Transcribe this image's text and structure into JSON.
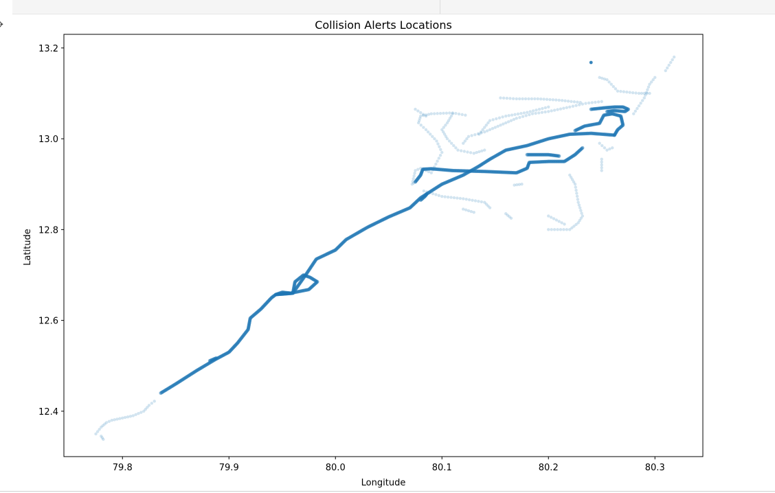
{
  "chart_data": {
    "type": "scatter",
    "title": "Collision Alerts Locations",
    "xlabel": "Longitude",
    "ylabel": "Latitude",
    "xlim": [
      79.745,
      80.345
    ],
    "ylim": [
      12.3,
      13.23
    ],
    "xticks": [
      79.8,
      79.9,
      80.0,
      80.1,
      80.2,
      80.3
    ],
    "xtick_labels": [
      "79.8",
      "79.9",
      "80.0",
      "80.1",
      "80.2",
      "80.3"
    ],
    "yticks": [
      12.4,
      12.6,
      12.8,
      13.0,
      13.2
    ],
    "ytick_labels": [
      "12.4",
      "12.6",
      "12.8",
      "13.0",
      "13.2"
    ],
    "grid": false,
    "marker_color": "#1f77b4",
    "marker_alpha": 0.2,
    "dense_tracks": [
      [
        [
          79.836,
          12.44
        ],
        [
          79.85,
          12.46
        ],
        [
          79.87,
          12.49
        ],
        [
          79.888,
          12.515
        ],
        [
          79.9,
          12.53
        ],
        [
          79.908,
          12.55
        ],
        [
          79.918,
          12.58
        ],
        [
          79.92,
          12.605
        ],
        [
          79.93,
          12.625
        ],
        [
          79.94,
          12.65
        ],
        [
          79.944,
          12.657
        ],
        [
          79.96,
          12.66
        ],
        [
          79.962,
          12.685
        ],
        [
          79.97,
          12.7
        ],
        [
          79.976,
          12.695
        ],
        [
          79.983,
          12.685
        ],
        [
          79.975,
          12.668
        ],
        [
          79.958,
          12.66
        ],
        [
          79.95,
          12.662
        ],
        [
          79.944,
          12.657
        ],
        [
          79.96,
          12.66
        ],
        [
          79.972,
          12.7
        ],
        [
          79.982,
          12.735
        ],
        [
          80.0,
          12.755
        ],
        [
          80.01,
          12.778
        ],
        [
          80.03,
          12.805
        ],
        [
          80.05,
          12.828
        ],
        [
          80.07,
          12.848
        ],
        [
          80.08,
          12.87
        ],
        [
          80.1,
          12.9
        ],
        [
          80.12,
          12.92
        ],
        [
          80.135,
          12.94
        ],
        [
          80.145,
          12.955
        ],
        [
          80.16,
          12.975
        ],
        [
          80.18,
          12.985
        ],
        [
          80.2,
          13.0
        ],
        [
          80.22,
          13.01
        ],
        [
          80.24,
          13.012
        ],
        [
          80.262,
          13.008
        ]
      ],
      [
        [
          80.225,
          13.018
        ],
        [
          80.234,
          13.028
        ],
        [
          80.248,
          13.034
        ],
        [
          80.252,
          13.052
        ],
        [
          80.26,
          13.055
        ],
        [
          80.268,
          13.05
        ],
        [
          80.27,
          13.03
        ],
        [
          80.265,
          13.02
        ],
        [
          80.262,
          13.008
        ]
      ],
      [
        [
          80.24,
          13.065
        ],
        [
          80.252,
          13.068
        ],
        [
          80.262,
          13.07
        ],
        [
          80.27,
          13.07
        ],
        [
          80.275,
          13.065
        ],
        [
          80.272,
          13.06
        ],
        [
          80.262,
          13.062
        ],
        [
          80.255,
          13.06
        ]
      ],
      [
        [
          80.075,
          12.905
        ],
        [
          80.08,
          12.92
        ],
        [
          80.082,
          12.933
        ],
        [
          80.09,
          12.934
        ],
        [
          80.11,
          12.93
        ],
        [
          80.14,
          12.928
        ],
        [
          80.17,
          12.925
        ],
        [
          80.18,
          12.935
        ],
        [
          80.182,
          12.948
        ],
        [
          80.2,
          12.95
        ],
        [
          80.215,
          12.95
        ],
        [
          80.225,
          12.965
        ],
        [
          80.232,
          12.98
        ]
      ],
      [
        [
          80.18,
          12.965
        ],
        [
          80.2,
          12.965
        ],
        [
          80.21,
          12.962
        ]
      ],
      [
        [
          80.08,
          12.865
        ],
        [
          80.084,
          12.873
        ],
        [
          80.086,
          12.879
        ]
      ],
      [
        [
          79.882,
          12.511
        ],
        [
          79.888,
          12.517
        ]
      ]
    ],
    "sparse_tracks": [
      [
        [
          79.775,
          12.35
        ],
        [
          79.78,
          12.365
        ],
        [
          79.785,
          12.375
        ],
        [
          79.79,
          12.38
        ],
        [
          79.8,
          12.385
        ],
        [
          79.81,
          12.39
        ],
        [
          79.82,
          12.4
        ],
        [
          79.825,
          12.413
        ],
        [
          79.83,
          12.422
        ]
      ],
      [
        [
          79.78,
          12.345
        ],
        [
          79.782,
          12.338
        ]
      ],
      [
        [
          80.083,
          12.885
        ],
        [
          80.1,
          12.873
        ],
        [
          80.12,
          12.868
        ],
        [
          80.14,
          12.86
        ],
        [
          80.145,
          12.848
        ]
      ],
      [
        [
          80.12,
          12.845
        ],
        [
          80.13,
          12.838
        ]
      ],
      [
        [
          80.075,
          12.905
        ],
        [
          80.072,
          12.9
        ],
        [
          80.075,
          12.93
        ],
        [
          80.08,
          12.935
        ],
        [
          80.09,
          12.925
        ],
        [
          80.1,
          12.97
        ],
        [
          80.095,
          12.995
        ],
        [
          80.085,
          13.02
        ],
        [
          80.078,
          13.035
        ],
        [
          80.08,
          13.05
        ],
        [
          80.09,
          13.055
        ],
        [
          80.11,
          13.057
        ],
        [
          80.122,
          13.052
        ]
      ],
      [
        [
          80.075,
          13.065
        ],
        [
          80.085,
          13.05
        ]
      ],
      [
        [
          80.11,
          13.055
        ],
        [
          80.105,
          13.035
        ],
        [
          80.1,
          13.02
        ],
        [
          80.105,
          13.0
        ],
        [
          80.115,
          12.975
        ],
        [
          80.13,
          12.968
        ],
        [
          80.14,
          12.975
        ]
      ],
      [
        [
          80.12,
          12.99
        ],
        [
          80.125,
          13.005
        ],
        [
          80.14,
          13.015
        ],
        [
          80.155,
          13.03
        ],
        [
          80.17,
          13.045
        ],
        [
          80.185,
          13.055
        ],
        [
          80.2,
          13.06
        ],
        [
          80.22,
          13.07
        ],
        [
          80.235,
          13.078
        ],
        [
          80.25,
          13.082
        ]
      ],
      [
        [
          80.135,
          13.01
        ],
        [
          80.145,
          13.04
        ],
        [
          80.16,
          13.05
        ],
        [
          80.18,
          13.058
        ],
        [
          80.2,
          13.07
        ]
      ],
      [
        [
          80.155,
          13.09
        ],
        [
          80.17,
          13.088
        ],
        [
          80.19,
          13.088
        ],
        [
          80.21,
          13.085
        ],
        [
          80.23,
          13.08
        ]
      ],
      [
        [
          80.22,
          12.92
        ],
        [
          80.225,
          12.9
        ],
        [
          80.228,
          12.86
        ],
        [
          80.232,
          12.83
        ],
        [
          80.228,
          12.815
        ],
        [
          80.22,
          12.8
        ],
        [
          80.2,
          12.8
        ]
      ],
      [
        [
          80.2,
          12.83
        ],
        [
          80.215,
          12.812
        ]
      ],
      [
        [
          80.16,
          12.835
        ],
        [
          80.165,
          12.825
        ]
      ],
      [
        [
          80.25,
          12.93
        ],
        [
          80.25,
          12.955
        ]
      ],
      [
        [
          80.248,
          13.135
        ],
        [
          80.255,
          13.13
        ],
        [
          80.265,
          13.105
        ],
        [
          80.285,
          13.1
        ],
        [
          80.295,
          13.1
        ]
      ],
      [
        [
          80.28,
          13.055
        ],
        [
          80.29,
          13.09
        ],
        [
          80.295,
          13.12
        ],
        [
          80.3,
          13.135
        ]
      ],
      [
        [
          80.31,
          13.15
        ],
        [
          80.318,
          13.18
        ]
      ],
      [
        [
          80.248,
          12.99
        ],
        [
          80.255,
          12.975
        ],
        [
          80.26,
          12.98
        ]
      ],
      [
        [
          80.168,
          12.898
        ],
        [
          80.175,
          12.9
        ]
      ]
    ],
    "outlier_point": [
      80.24,
      13.168
    ]
  }
}
